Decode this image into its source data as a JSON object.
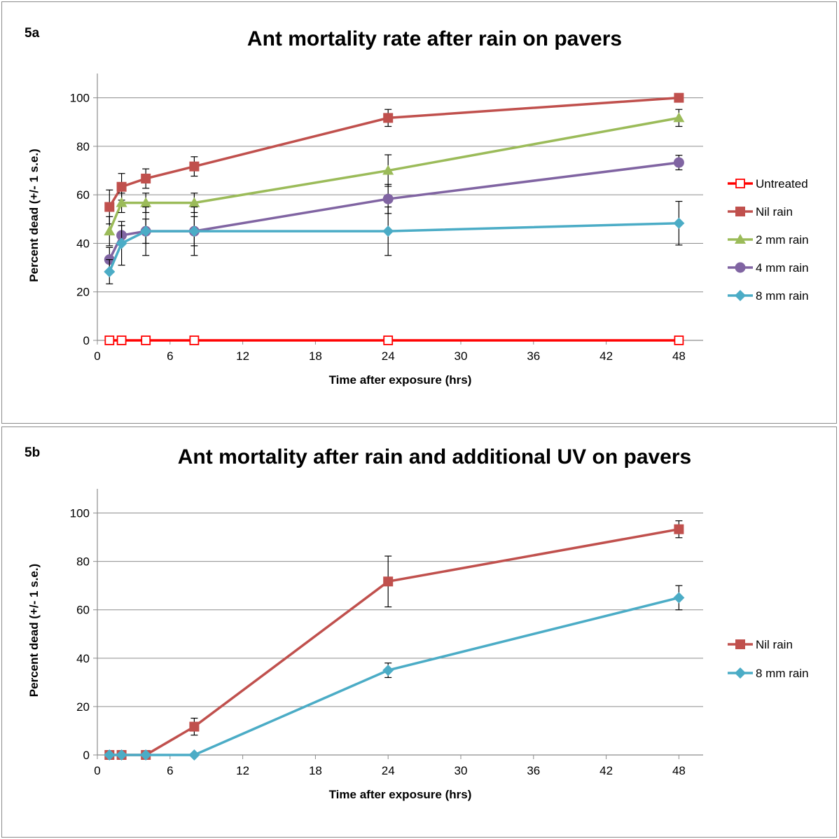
{
  "chart_data": [
    {
      "type": "line",
      "panel_label": "5a",
      "title": "Ant mortality rate after rain on pavers",
      "xlabel": "Time  after exposure (hrs)",
      "ylabel": "Percent  dead  (+/- 1 s.e.)",
      "xlim": [
        0,
        50
      ],
      "ylim": [
        0,
        110
      ],
      "xticks": [
        0,
        6,
        12,
        18,
        24,
        30,
        36,
        42,
        48
      ],
      "yticks": [
        0,
        20,
        40,
        60,
        80,
        100
      ],
      "grid": "horizontal",
      "legend": "right",
      "x": [
        1,
        2,
        4,
        8,
        24,
        48
      ],
      "series": [
        {
          "name": "Untreated",
          "color": "#ff0000",
          "marker": "square-open",
          "values": [
            0,
            0,
            0,
            0,
            0,
            0
          ],
          "err": [
            0,
            0,
            0,
            0,
            0,
            0
          ]
        },
        {
          "name": "Nil rain",
          "color": "#c0504d",
          "marker": "square",
          "values": [
            55,
            63.3,
            66.7,
            71.7,
            91.7,
            100
          ],
          "err": [
            7,
            5.5,
            4,
            4,
            3.5,
            0
          ]
        },
        {
          "name": "2 mm rain",
          "color": "#9bbb59",
          "marker": "triangle",
          "values": [
            45,
            56.7,
            56.7,
            56.7,
            70,
            91.7
          ],
          "err": [
            6,
            4,
            4,
            4,
            6.5,
            3.5
          ]
        },
        {
          "name": "4 mm rain",
          "color": "#8064a2",
          "marker": "circle",
          "values": [
            33.3,
            43.3,
            45,
            45,
            58.3,
            73.3
          ],
          "err": [
            5,
            4,
            5,
            6,
            6,
            3
          ]
        },
        {
          "name": "8 mm rain",
          "color": "#4bacc6",
          "marker": "diamond",
          "values": [
            28.3,
            40,
            45,
            45,
            45,
            48.3
          ],
          "err": [
            5,
            9,
            10,
            10,
            10,
            9
          ]
        }
      ]
    },
    {
      "type": "line",
      "panel_label": "5b",
      "title": "Ant mortality after rain and additional UV on pavers",
      "xlabel": "Time  after exposure (hrs)",
      "ylabel": "Percent  dead  (+/- 1 s.e.)",
      "xlim": [
        0,
        50
      ],
      "ylim": [
        0,
        110
      ],
      "xticks": [
        0,
        6,
        12,
        18,
        24,
        30,
        36,
        42,
        48
      ],
      "yticks": [
        0,
        20,
        40,
        60,
        80,
        100
      ],
      "grid": "horizontal",
      "legend": "right",
      "x": [
        1,
        2,
        4,
        8,
        24,
        48
      ],
      "series": [
        {
          "name": "Nil rain",
          "color": "#c0504d",
          "marker": "square",
          "values": [
            0,
            0,
            0,
            11.7,
            71.7,
            93.3
          ],
          "err": [
            0,
            0,
            0,
            3.5,
            10.5,
            3.5
          ]
        },
        {
          "name": "8 mm rain",
          "color": "#4bacc6",
          "marker": "diamond",
          "values": [
            0,
            0,
            0,
            0,
            35,
            65
          ],
          "err": [
            0,
            0,
            0,
            0,
            3,
            5
          ]
        }
      ]
    }
  ]
}
